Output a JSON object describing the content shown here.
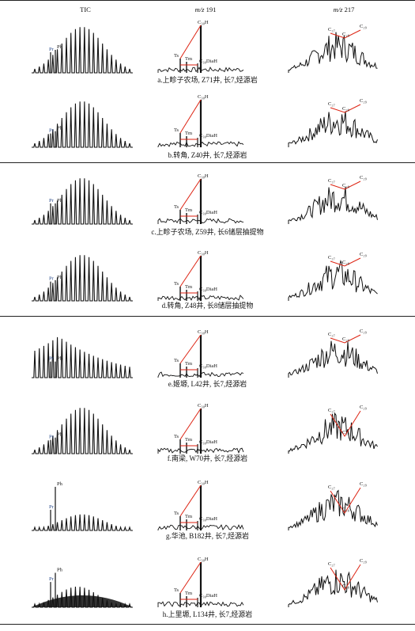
{
  "headers": {
    "tic": "TIC",
    "m191_prefix": "m/z",
    "m191_value": "191",
    "m217_prefix": "m/z",
    "m217_value": "217"
  },
  "labels": {
    "pr": "Pr",
    "ph": "Ph",
    "c30": "C₃₀H",
    "ts": "Ts",
    "tm": "Tm",
    "dia": "C₃₀DiaH",
    "c27": "C₂₇",
    "c28": "C₂₈",
    "c29": "C₂₉"
  },
  "panels": [
    {
      "caption": "a.上畛子农场, Z71井, 长7,烃源岩",
      "tic": "hump",
      "pr_ph": [
        0.45,
        0.5
      ],
      "m191_c30": 1.0,
      "m217": "c29"
    },
    {
      "caption": "b.转角, Z40井, 长7,烃源岩",
      "tic": "hump",
      "pr_ph": [
        0.3,
        0.35
      ],
      "m191_c30": 1.0,
      "m217": "c29"
    },
    {
      "caption": "c.上畛子农场, Z59井, 长6储层抽提物",
      "tic": "hump",
      "pr_ph": [
        0.45,
        0.45
      ],
      "m191_c30": 0.95,
      "m217": "flat"
    },
    {
      "caption": "d.转角, Z48井, 长8储层抽提物",
      "tic": "hump",
      "pr_ph": [
        0.42,
        0.45
      ],
      "m191_c30": 0.95,
      "m217": "c29"
    },
    {
      "caption": "e.姬塬, L42井, 长7,烃源岩",
      "tic": "decay",
      "pr_ph": [
        0.35,
        0.35
      ],
      "m191_c30": 0.9,
      "m217": "flat"
    },
    {
      "caption": "f.南梁, W70井, 长7,烃源岩",
      "tic": "hump",
      "pr_ph": [
        0.3,
        0.35
      ],
      "m191_c30": 0.95,
      "m217": "v"
    },
    {
      "caption": "g.华池, B182井, 长7,烃源岩",
      "tic": "phdom",
      "pr_ph": [
        0.45,
        0.95
      ],
      "m191_c30": 0.95,
      "m217": "v"
    },
    {
      "caption": "h.上里塬, L134井, 长7,烃源岩",
      "tic": "ucm",
      "pr_ph": [
        0.55,
        0.75
      ],
      "m191_c30": 0.95,
      "m217": "v"
    }
  ]
}
